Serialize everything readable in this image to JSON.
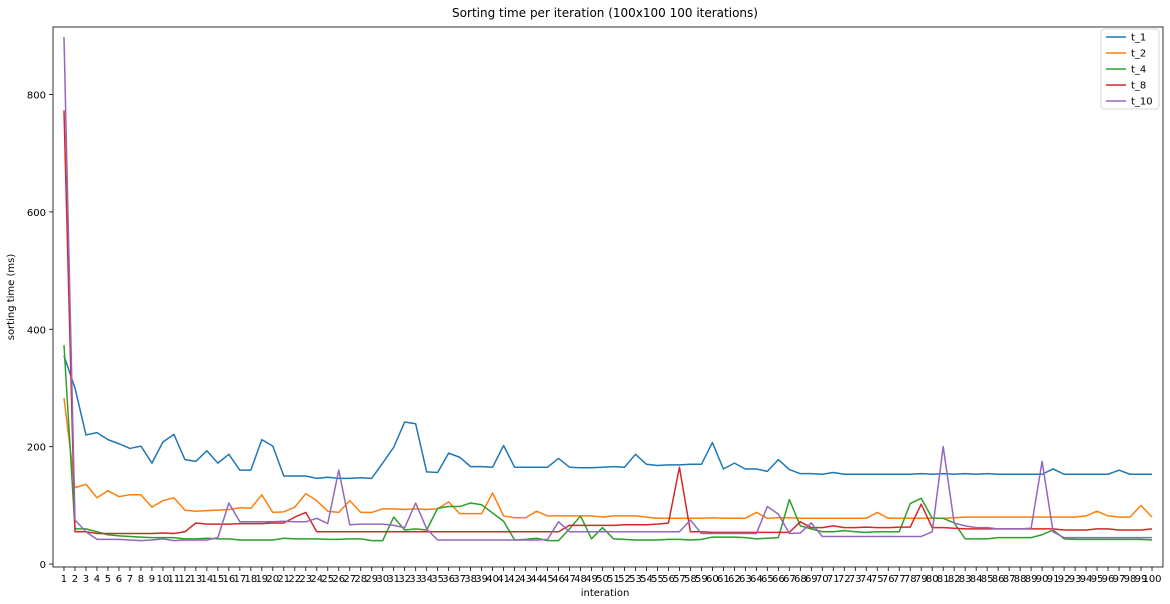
{
  "chart_data": {
    "type": "line",
    "title": "Sorting time per iteration (100x100 100 iterations)",
    "xlabel": "interation",
    "ylabel": "sorting time (ms)",
    "xlim": [
      0,
      101
    ],
    "ylim": [
      -5,
      915
    ],
    "yticks": [
      0,
      200,
      400,
      600,
      800
    ],
    "legend_position": "top-right",
    "grid": false,
    "x": [
      1,
      2,
      3,
      4,
      5,
      6,
      7,
      8,
      9,
      10,
      11,
      12,
      13,
      14,
      15,
      16,
      17,
      18,
      19,
      20,
      21,
      22,
      23,
      24,
      25,
      26,
      27,
      28,
      29,
      30,
      31,
      32,
      33,
      34,
      35,
      36,
      37,
      38,
      39,
      40,
      41,
      42,
      43,
      44,
      45,
      46,
      47,
      48,
      49,
      50,
      51,
      52,
      53,
      54,
      55,
      56,
      57,
      58,
      59,
      60,
      61,
      62,
      63,
      64,
      65,
      66,
      67,
      68,
      69,
      70,
      71,
      72,
      73,
      74,
      75,
      76,
      77,
      78,
      79,
      80,
      81,
      82,
      83,
      84,
      85,
      86,
      87,
      88,
      89,
      90,
      91,
      92,
      93,
      94,
      95,
      96,
      97,
      98,
      99,
      100
    ],
    "series": [
      {
        "name": "t_1",
        "color": "#1f77b4",
        "values": [
          355,
          300,
          220,
          224,
          212,
          205,
          197,
          201,
          172,
          208,
          221,
          178,
          175,
          193,
          172,
          187,
          160,
          160,
          212,
          201,
          150,
          150,
          150,
          146,
          148,
          146,
          146,
          147,
          146,
          172,
          199,
          242,
          239,
          157,
          156,
          189,
          182,
          166,
          166,
          165,
          202,
          165,
          165,
          165,
          165,
          180,
          165,
          164,
          164,
          165,
          166,
          165,
          187,
          170,
          168,
          169,
          169,
          170,
          170,
          207,
          162,
          172,
          162,
          162,
          158,
          178,
          161,
          154,
          154,
          153,
          156,
          153,
          153,
          153,
          153,
          153,
          153,
          153,
          154,
          153,
          154,
          153,
          154,
          153,
          154,
          153,
          153,
          153,
          153,
          153,
          162,
          153,
          153,
          153,
          153,
          153,
          160,
          153,
          153,
          153
        ]
      },
      {
        "name": "t_2",
        "color": "#ff7f0e",
        "values": [
          283,
          130,
          136,
          113,
          125,
          115,
          118,
          118,
          97,
          108,
          113,
          92,
          90,
          91,
          92,
          93,
          96,
          95,
          118,
          88,
          89,
          97,
          120,
          108,
          90,
          88,
          108,
          88,
          88,
          94,
          94,
          93,
          94,
          93,
          94,
          106,
          86,
          86,
          86,
          121,
          82,
          79,
          79,
          90,
          82,
          82,
          82,
          82,
          82,
          80,
          82,
          82,
          82,
          80,
          78,
          78,
          78,
          78,
          78,
          79,
          78,
          78,
          78,
          88,
          78,
          79,
          79,
          78,
          78,
          78,
          78,
          78,
          78,
          78,
          88,
          78,
          78,
          78,
          78,
          78,
          78,
          79,
          80,
          80,
          80,
          80,
          80,
          80,
          80,
          80,
          80,
          80,
          80,
          82,
          90,
          82,
          80,
          80,
          100,
          80
        ]
      },
      {
        "name": "t_4",
        "color": "#2ca02c",
        "values": [
          373,
          60,
          60,
          55,
          50,
          48,
          47,
          46,
          45,
          45,
          45,
          43,
          43,
          44,
          43,
          43,
          41,
          41,
          41,
          41,
          44,
          43,
          43,
          43,
          42,
          42,
          43,
          43,
          40,
          40,
          80,
          58,
          60,
          58,
          95,
          98,
          98,
          104,
          101,
          87,
          73,
          41,
          42,
          44,
          40,
          40,
          60,
          82,
          43,
          62,
          43,
          42,
          41,
          41,
          41,
          42,
          42,
          41,
          42,
          46,
          46,
          46,
          45,
          43,
          44,
          45,
          110,
          65,
          60,
          55,
          55,
          57,
          55,
          54,
          55,
          55,
          55,
          103,
          112,
          78,
          78,
          70,
          43,
          43,
          43,
          45,
          45,
          45,
          45,
          50,
          58,
          43,
          42,
          42,
          42,
          42,
          42,
          42,
          42,
          41
        ]
      },
      {
        "name": "t_8",
        "color": "#d62728",
        "values": [
          773,
          55,
          55,
          52,
          52,
          52,
          52,
          52,
          52,
          53,
          52,
          55,
          70,
          68,
          68,
          68,
          69,
          69,
          69,
          70,
          70,
          80,
          88,
          55,
          55,
          55,
          55,
          55,
          55,
          55,
          55,
          55,
          55,
          55,
          55,
          55,
          55,
          55,
          55,
          55,
          55,
          55,
          55,
          55,
          55,
          55,
          66,
          66,
          66,
          66,
          66,
          67,
          67,
          67,
          68,
          70,
          165,
          55,
          55,
          54,
          54,
          54,
          54,
          54,
          54,
          54,
          54,
          72,
          62,
          62,
          65,
          62,
          62,
          63,
          62,
          62,
          63,
          63,
          102,
          62,
          62,
          61,
          60,
          60,
          60,
          60,
          60,
          60,
          60,
          60,
          60,
          58,
          58,
          58,
          60,
          60,
          58,
          58,
          58,
          60
        ]
      },
      {
        "name": "t_10",
        "color": "#9467bd",
        "values": [
          898,
          75,
          55,
          42,
          42,
          42,
          41,
          40,
          41,
          43,
          40,
          41,
          41,
          41,
          45,
          104,
          72,
          72,
          72,
          72,
          73,
          72,
          72,
          78,
          69,
          160,
          67,
          68,
          68,
          68,
          66,
          62,
          104,
          60,
          41,
          41,
          41,
          41,
          41,
          41,
          41,
          41,
          41,
          41,
          42,
          72,
          55,
          55,
          55,
          55,
          55,
          55,
          55,
          55,
          55,
          55,
          55,
          75,
          52,
          52,
          52,
          52,
          52,
          52,
          98,
          85,
          52,
          53,
          70,
          47,
          47,
          47,
          47,
          47,
          47,
          47,
          47,
          47,
          47,
          55,
          200,
          70,
          65,
          62,
          62,
          60,
          60,
          60,
          61,
          175,
          55,
          45,
          45,
          45,
          45,
          45,
          45,
          45,
          45,
          45
        ]
      }
    ]
  }
}
